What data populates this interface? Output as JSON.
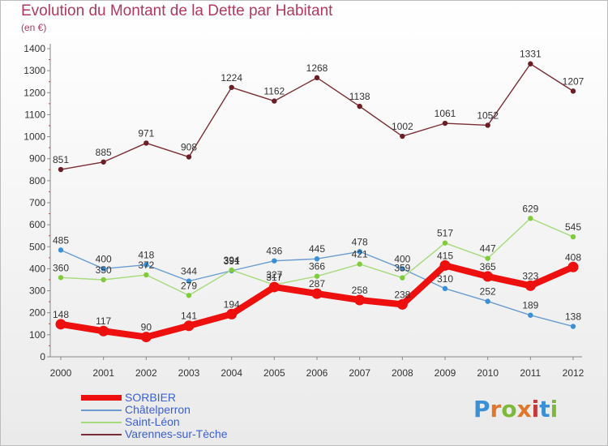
{
  "header": {
    "title": "Evolution du Montant de la Dette par Habitant",
    "subtitle": "(en €)"
  },
  "brand": {
    "text": "Proxiti",
    "letter_colors": [
      "#3b8fd6",
      "#e0782c",
      "#7fb93b",
      "#e0782c",
      "#c23b3b",
      "#3b8fd6",
      "#7fb93b"
    ]
  },
  "chart_data": {
    "type": "line",
    "title": "Evolution du Montant de la Dette par Habitant",
    "subtitle": "(en €)",
    "xlabel": "",
    "ylabel": "",
    "x": [
      "2000",
      "2001",
      "2002",
      "2003",
      "2004",
      "2005",
      "2006",
      "2007",
      "2008",
      "2009",
      "2010",
      "2011",
      "2012"
    ],
    "ylim": [
      0,
      1400
    ],
    "yticks": [
      0,
      100,
      200,
      300,
      400,
      500,
      600,
      700,
      800,
      900,
      1000,
      1100,
      1200,
      1300,
      1400
    ],
    "grid": false,
    "legend": "bottom-left",
    "series": [
      {
        "name": "SORBIER",
        "color": "#ee0f0f",
        "point_color": "#ee0f0f",
        "emphasis": true,
        "values": [
          148,
          117,
          90,
          141,
          194,
          317,
          287,
          258,
          238,
          415,
          365,
          323,
          408
        ]
      },
      {
        "name": "Châtelperron",
        "color": "#6a9ccf",
        "point_color": "#3b8fd6",
        "emphasis": false,
        "values": [
          485,
          400,
          418,
          344,
          391,
          436,
          445,
          478,
          400,
          310,
          252,
          189,
          138
        ]
      },
      {
        "name": "Saint-Léon",
        "color": "#a6da7c",
        "point_color": "#7fcb3b",
        "emphasis": false,
        "values": [
          360,
          350,
          372,
          279,
          394,
          327,
          366,
          421,
          359,
          517,
          447,
          629,
          545
        ]
      },
      {
        "name": "Varennes-sur-Tèche",
        "color": "#7a2f35",
        "point_color": "#6b1e25",
        "emphasis": false,
        "values": [
          851,
          885,
          971,
          908,
          1224,
          1162,
          1268,
          1138,
          1002,
          1061,
          1052,
          1331,
          1207
        ]
      }
    ]
  }
}
